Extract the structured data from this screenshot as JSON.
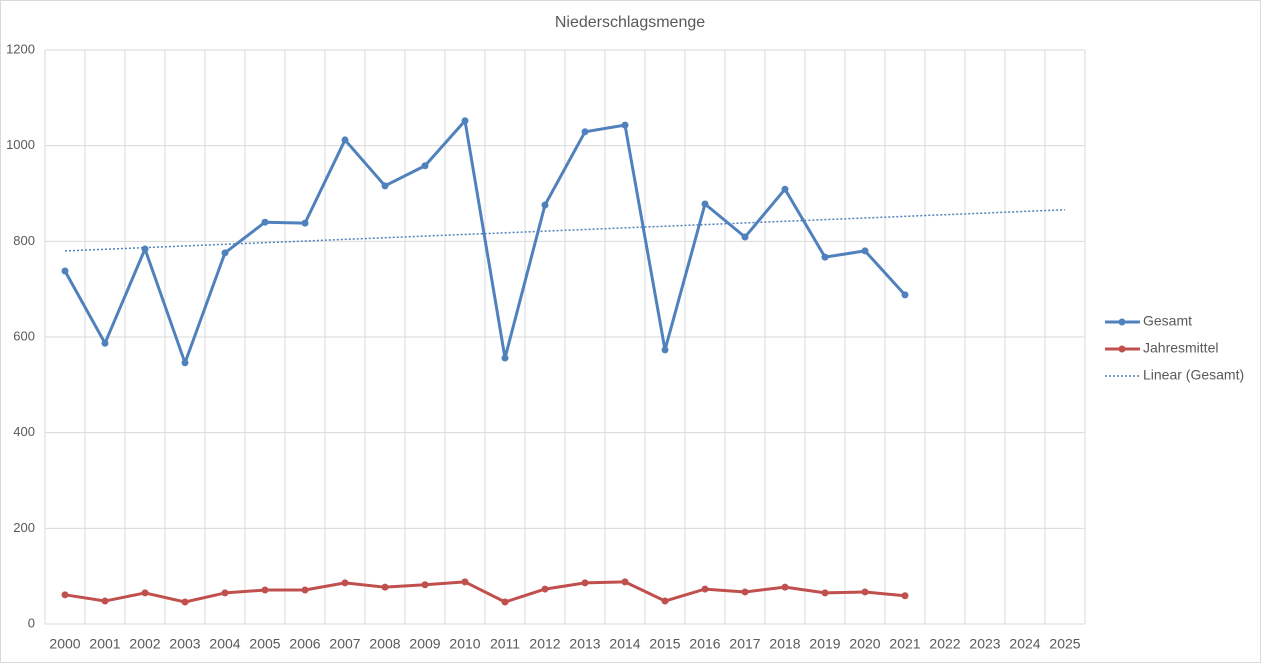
{
  "chart_data": {
    "type": "line",
    "title": "Niederschlagsmenge",
    "categories": [
      "2000",
      "2001",
      "2002",
      "2003",
      "2004",
      "2005",
      "2006",
      "2007",
      "2008",
      "2009",
      "2010",
      "2011",
      "2012",
      "2013",
      "2014",
      "2015",
      "2016",
      "2017",
      "2018",
      "2019",
      "2020",
      "2021",
      "2022",
      "2023",
      "2024",
      "2025"
    ],
    "series": [
      {
        "name": "Gesamt",
        "color": "#4f81bd",
        "style": "solid",
        "markers": true,
        "values": [
          738,
          587,
          784,
          546,
          776,
          840,
          838,
          1012,
          916,
          958,
          1052,
          556,
          876,
          1029,
          1043,
          573,
          878,
          809,
          909,
          767,
          780,
          688,
          null,
          null,
          null,
          null
        ]
      },
      {
        "name": "Jahresmittel",
        "color": "#c0504d",
        "style": "solid",
        "markers": true,
        "values": [
          61,
          48,
          65,
          46,
          65,
          71,
          71,
          86,
          77,
          82,
          88,
          46,
          73,
          86,
          88,
          48,
          73,
          67,
          77,
          65,
          67,
          59,
          null,
          null,
          null,
          null
        ]
      },
      {
        "name": "Linear (Gesamt)",
        "color": "#4f81bd",
        "style": "dotted",
        "markers": false,
        "values": [
          780,
          783.4,
          786.9,
          790.3,
          793.8,
          797.2,
          800.6,
          804.1,
          807.5,
          811,
          814.4,
          817.8,
          821.3,
          824.7,
          828.2,
          831.6,
          835,
          838.5,
          841.9,
          845.4,
          848.8,
          852.2,
          855.7,
          859.1,
          862.6,
          866
        ]
      }
    ],
    "ylim": [
      0,
      1200
    ],
    "yticks": [
      0,
      200,
      400,
      600,
      800,
      1000,
      1200
    ],
    "grid": true,
    "legend": "right"
  }
}
